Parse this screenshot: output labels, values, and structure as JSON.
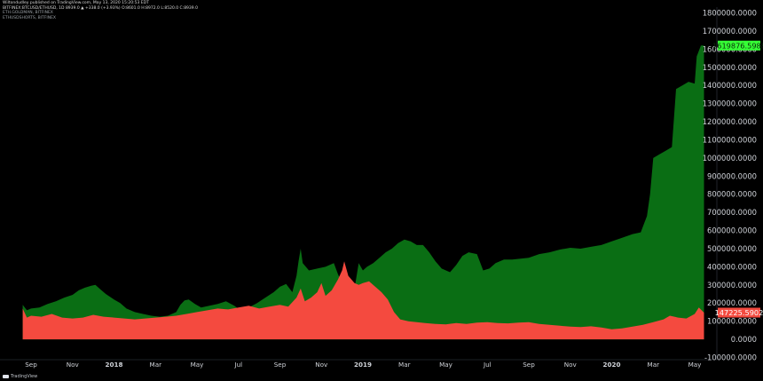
{
  "header": {
    "line1": "Wiltondudley published on TradingView.com, May 13, 2020 15:20:53 EDT",
    "line2": "BITFINEX:BTCUSD/ETHUSD, 1D 8939.0 ▲ +338.0 (+3.93%) O:8601.0 H:8972.0 L:8520.0 C:8939.0",
    "ind1": "ETH.GOLDMAN, BITFINEX",
    "ind2": "ETHUSDSHORTS, BITFINEX"
  },
  "footer": {
    "brand": "TradingView"
  },
  "colors": {
    "green": "#0a6e14",
    "red": "#f44a3f",
    "green_label": "#35ff35",
    "red_label": "#f44a3f"
  },
  "chart_data": {
    "type": "area",
    "ylim": [
      -100000,
      1800000
    ],
    "yticks": [
      "1800000.0000",
      "1700000.0000",
      "1600000.0000",
      "1500000.0000",
      "1400000.0000",
      "1300000.0000",
      "1200000.0000",
      "1100000.0000",
      "1000000.0000",
      "900000.0000",
      "800000.0000",
      "700000.0000",
      "600000.0000",
      "500000.0000",
      "400000.0000",
      "300000.0000",
      "200000.0000",
      "100000.0000",
      "0.0000",
      "-100000.0000"
    ],
    "xticks": [
      {
        "label": "Sep",
        "t": 0
      },
      {
        "label": "Nov",
        "t": 2
      },
      {
        "label": "2018",
        "t": 4,
        "bold": true
      },
      {
        "label": "Mar",
        "t": 6
      },
      {
        "label": "May",
        "t": 8
      },
      {
        "label": "Jul",
        "t": 10
      },
      {
        "label": "Sep",
        "t": 12
      },
      {
        "label": "Nov",
        "t": 14
      },
      {
        "label": "2019",
        "t": 16,
        "bold": true
      },
      {
        "label": "Mar",
        "t": 18
      },
      {
        "label": "May",
        "t": 20
      },
      {
        "label": "Jul",
        "t": 22
      },
      {
        "label": "Sep",
        "t": 24
      },
      {
        "label": "Nov",
        "t": 26
      },
      {
        "label": "2020",
        "t": 28,
        "bold": true
      },
      {
        "label": "Mar",
        "t": 30
      },
      {
        "label": "May",
        "t": 32
      }
    ],
    "series": [
      {
        "values": [
          [
            -0.4,
            190000
          ],
          [
            -0.2,
            160000
          ],
          [
            0,
            170000
          ],
          [
            0.4,
            175000
          ],
          [
            0.8,
            195000
          ],
          [
            1.2,
            210000
          ],
          [
            1.6,
            230000
          ],
          [
            2,
            245000
          ],
          [
            2.3,
            270000
          ],
          [
            2.6,
            285000
          ],
          [
            2.9,
            295000
          ],
          [
            3.1,
            300000
          ],
          [
            3.3,
            280000
          ],
          [
            3.6,
            250000
          ],
          [
            4,
            220000
          ],
          [
            4.3,
            200000
          ],
          [
            4.6,
            170000
          ],
          [
            5,
            150000
          ],
          [
            5.4,
            140000
          ],
          [
            5.8,
            130000
          ],
          [
            6.2,
            125000
          ],
          [
            6.6,
            130000
          ],
          [
            7,
            150000
          ],
          [
            7.2,
            190000
          ],
          [
            7.4,
            215000
          ],
          [
            7.6,
            220000
          ],
          [
            7.9,
            195000
          ],
          [
            8.2,
            175000
          ],
          [
            8.6,
            185000
          ],
          [
            9,
            195000
          ],
          [
            9.4,
            210000
          ],
          [
            9.8,
            185000
          ],
          [
            10.1,
            160000
          ],
          [
            10.5,
            175000
          ],
          [
            10.9,
            200000
          ],
          [
            11.3,
            230000
          ],
          [
            11.7,
            260000
          ],
          [
            12,
            290000
          ],
          [
            12.3,
            305000
          ],
          [
            12.6,
            260000
          ],
          [
            12.8,
            350000
          ],
          [
            12.9,
            430000
          ],
          [
            13,
            500000
          ],
          [
            13.1,
            420000
          ],
          [
            13.4,
            380000
          ],
          [
            13.8,
            390000
          ],
          [
            14.2,
            400000
          ],
          [
            14.6,
            420000
          ],
          [
            14.8,
            360000
          ],
          [
            15,
            310000
          ],
          [
            15.2,
            350000
          ],
          [
            15.4,
            300000
          ],
          [
            15.6,
            280000
          ],
          [
            15.8,
            420000
          ],
          [
            16,
            380000
          ],
          [
            16.2,
            400000
          ],
          [
            16.5,
            420000
          ],
          [
            16.8,
            450000
          ],
          [
            17.1,
            480000
          ],
          [
            17.4,
            500000
          ],
          [
            17.7,
            530000
          ],
          [
            18,
            550000
          ],
          [
            18.3,
            540000
          ],
          [
            18.6,
            520000
          ],
          [
            18.9,
            520000
          ],
          [
            19.2,
            480000
          ],
          [
            19.5,
            430000
          ],
          [
            19.8,
            390000
          ],
          [
            20.2,
            370000
          ],
          [
            20.5,
            410000
          ],
          [
            20.8,
            460000
          ],
          [
            21.1,
            480000
          ],
          [
            21.5,
            470000
          ],
          [
            21.8,
            380000
          ],
          [
            22.1,
            390000
          ],
          [
            22.4,
            420000
          ],
          [
            22.8,
            440000
          ],
          [
            23.2,
            440000
          ],
          [
            23.6,
            445000
          ],
          [
            24,
            450000
          ],
          [
            24.5,
            470000
          ],
          [
            25,
            480000
          ],
          [
            25.5,
            495000
          ],
          [
            26,
            505000
          ],
          [
            26.5,
            500000
          ],
          [
            27,
            510000
          ],
          [
            27.5,
            520000
          ],
          [
            28,
            540000
          ],
          [
            28.5,
            560000
          ],
          [
            29,
            580000
          ],
          [
            29.4,
            590000
          ],
          [
            29.7,
            680000
          ],
          [
            29.85,
            800000
          ],
          [
            30,
            1000000
          ],
          [
            30.3,
            1020000
          ],
          [
            30.6,
            1040000
          ],
          [
            30.9,
            1060000
          ],
          [
            31.1,
            1380000
          ],
          [
            31.4,
            1400000
          ],
          [
            31.7,
            1420000
          ],
          [
            32,
            1410000
          ],
          [
            32.1,
            1560000
          ],
          [
            32.3,
            1620000
          ],
          [
            32.45,
            1620000
          ]
        ]
      },
      {
        "values": [
          [
            -0.4,
            170000
          ],
          [
            -0.2,
            120000
          ],
          [
            0,
            130000
          ],
          [
            0.5,
            125000
          ],
          [
            1,
            140000
          ],
          [
            1.5,
            120000
          ],
          [
            2,
            115000
          ],
          [
            2.5,
            120000
          ],
          [
            3,
            135000
          ],
          [
            3.5,
            125000
          ],
          [
            4,
            120000
          ],
          [
            4.5,
            115000
          ],
          [
            5,
            110000
          ],
          [
            5.5,
            115000
          ],
          [
            6,
            120000
          ],
          [
            6.5,
            125000
          ],
          [
            7,
            130000
          ],
          [
            7.5,
            140000
          ],
          [
            8,
            150000
          ],
          [
            8.5,
            160000
          ],
          [
            9,
            170000
          ],
          [
            9.5,
            165000
          ],
          [
            10,
            175000
          ],
          [
            10.5,
            185000
          ],
          [
            11,
            170000
          ],
          [
            11.5,
            180000
          ],
          [
            12,
            190000
          ],
          [
            12.4,
            180000
          ],
          [
            12.8,
            230000
          ],
          [
            13,
            280000
          ],
          [
            13.2,
            210000
          ],
          [
            13.5,
            230000
          ],
          [
            13.8,
            260000
          ],
          [
            14,
            310000
          ],
          [
            14.2,
            240000
          ],
          [
            14.5,
            270000
          ],
          [
            14.8,
            330000
          ],
          [
            15,
            380000
          ],
          [
            15.1,
            430000
          ],
          [
            15.3,
            350000
          ],
          [
            15.6,
            310000
          ],
          [
            15.8,
            300000
          ],
          [
            16,
            310000
          ],
          [
            16.3,
            320000
          ],
          [
            16.6,
            290000
          ],
          [
            16.9,
            260000
          ],
          [
            17.2,
            220000
          ],
          [
            17.5,
            150000
          ],
          [
            17.8,
            110000
          ],
          [
            18.2,
            100000
          ],
          [
            18.6,
            95000
          ],
          [
            19,
            90000
          ],
          [
            19.5,
            85000
          ],
          [
            20,
            82000
          ],
          [
            20.5,
            90000
          ],
          [
            21,
            85000
          ],
          [
            21.5,
            92000
          ],
          [
            22,
            95000
          ],
          [
            22.5,
            90000
          ],
          [
            23,
            88000
          ],
          [
            23.5,
            92000
          ],
          [
            24,
            95000
          ],
          [
            24.5,
            85000
          ],
          [
            25,
            80000
          ],
          [
            25.5,
            75000
          ],
          [
            26,
            70000
          ],
          [
            26.5,
            68000
          ],
          [
            27,
            72000
          ],
          [
            27.5,
            65000
          ],
          [
            28,
            55000
          ],
          [
            28.5,
            60000
          ],
          [
            29,
            70000
          ],
          [
            29.5,
            80000
          ],
          [
            30,
            95000
          ],
          [
            30.5,
            110000
          ],
          [
            30.8,
            130000
          ],
          [
            31.2,
            120000
          ],
          [
            31.6,
            115000
          ],
          [
            32,
            140000
          ],
          [
            32.2,
            175000
          ],
          [
            32.45,
            147225
          ]
        ]
      }
    ],
    "last_values": [
      {
        "label": "1619876.5988",
        "value": 1619876.5988
      },
      {
        "label": "147225.5902",
        "value": 147225.5902
      }
    ]
  }
}
